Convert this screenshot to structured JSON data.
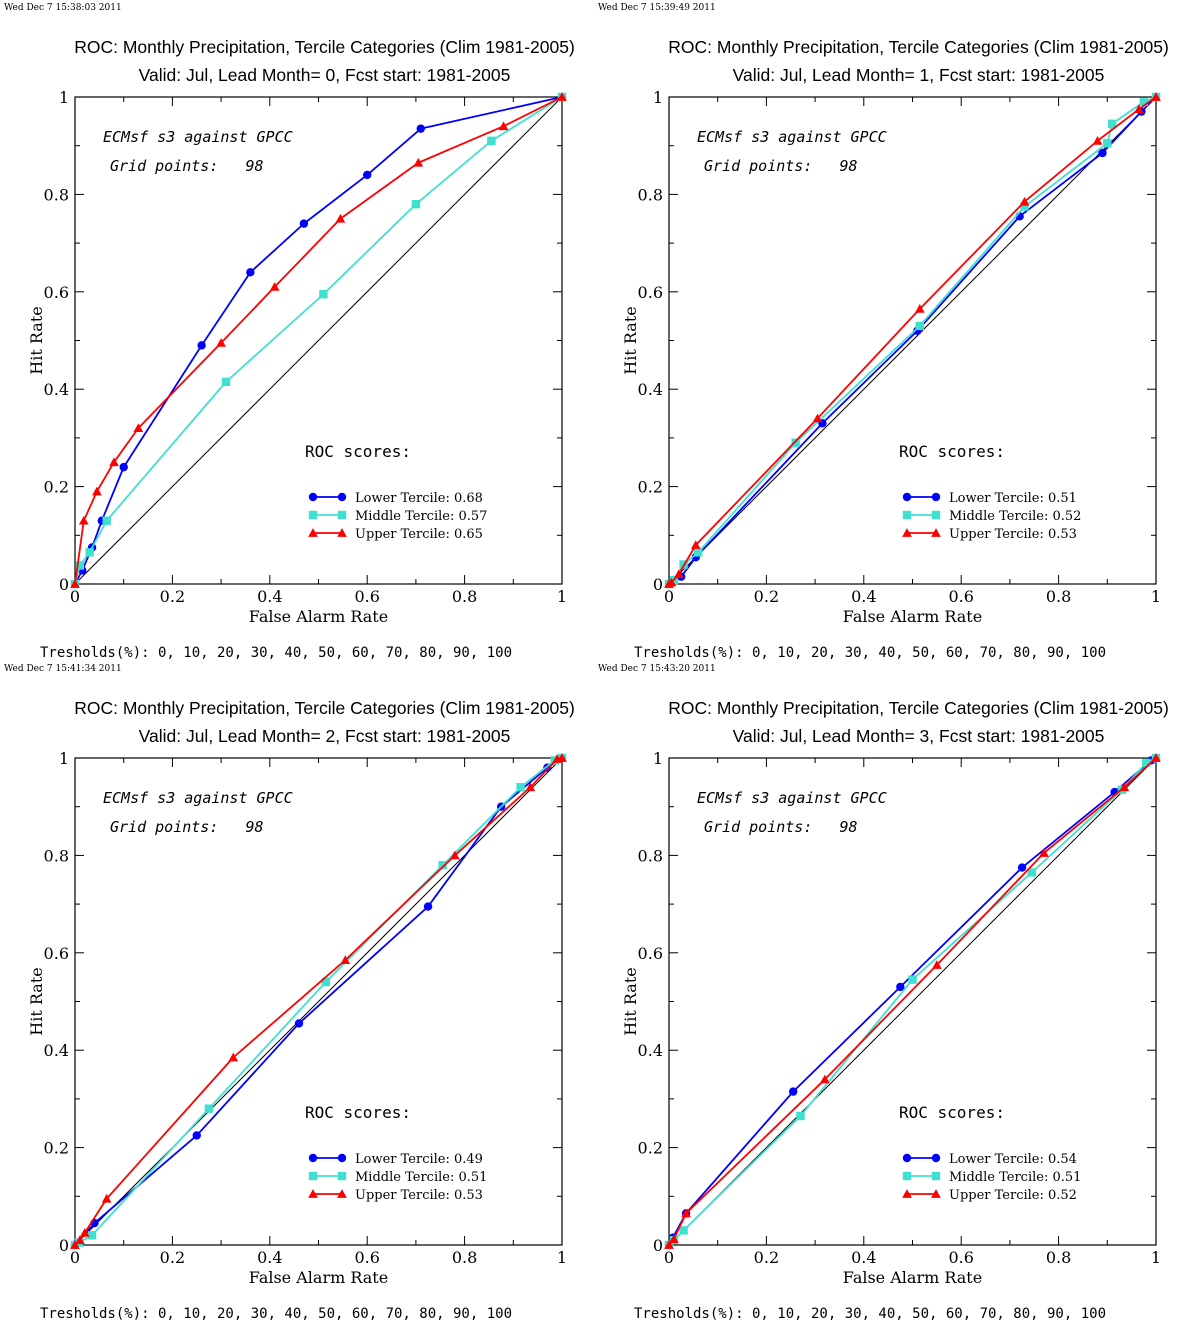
{
  "colors": {
    "lower": "#0000ff",
    "middle": "#40e0d0",
    "upper": "#ff0000",
    "axes": "#000000",
    "diagonal": "#000000"
  },
  "chart_data": [
    {
      "type": "line",
      "timestamp": "Wed Dec  7 15:38:03 2011",
      "title": "ROC: Monthly Precipitation, Tercile Categories (Clim 1981-2005)",
      "subtitle": "Valid: Jul, Lead Month= 0, Fcst start: 1981-2005",
      "xlabel": "False Alarm Rate",
      "ylabel": "Hit Rate",
      "xlim": [
        0,
        1
      ],
      "ylim": [
        0,
        1
      ],
      "xticks": [
        "0",
        "0.2",
        "0.4",
        "0.6",
        "0.8",
        "1"
      ],
      "yticks": [
        "0",
        "0.2",
        "0.4",
        "0.6",
        "0.8",
        "1"
      ],
      "annotation_1": "ECMsf s3 against GPCC",
      "annotation_2": "Grid points:   98",
      "scores_label": "ROC scores:",
      "thresholds": "Tresholds(%): 0, 10, 20, 30, 40, 50, 60, 70, 80, 90, 100",
      "series": [
        {
          "name": "Lower Tercile: 0.68",
          "marker": "circle",
          "color_key": "lower",
          "x": [
            0,
            0.015,
            0.035,
            0.055,
            0.1,
            0.26,
            0.36,
            0.47,
            0.6,
            0.71,
            1
          ],
          "y": [
            0,
            0.028,
            0.075,
            0.13,
            0.24,
            0.49,
            0.64,
            0.74,
            0.84,
            0.935,
            1
          ]
        },
        {
          "name": "Middle Tercile: 0.57",
          "marker": "square",
          "color_key": "middle",
          "x": [
            0,
            0.01,
            0.03,
            0.065,
            0.31,
            0.51,
            0.7,
            0.855,
            1
          ],
          "y": [
            0,
            0.038,
            0.065,
            0.13,
            0.415,
            0.595,
            0.78,
            0.91,
            1
          ]
        },
        {
          "name": "Upper Tercile: 0.65",
          "marker": "triangle",
          "color_key": "upper",
          "x": [
            0,
            0.018,
            0.045,
            0.08,
            0.13,
            0.3,
            0.41,
            0.545,
            0.705,
            0.88,
            1
          ],
          "y": [
            0,
            0.13,
            0.19,
            0.25,
            0.32,
            0.495,
            0.61,
            0.75,
            0.865,
            0.94,
            1
          ]
        }
      ]
    },
    {
      "type": "line",
      "timestamp": "Wed Dec  7 15:39:49 2011",
      "title": "ROC: Monthly Precipitation, Tercile Categories (Clim 1981-2005)",
      "subtitle": "Valid: Jul, Lead Month= 1, Fcst start: 1981-2005",
      "xlabel": "False Alarm Rate",
      "ylabel": "Hit Rate",
      "xlim": [
        0,
        1
      ],
      "ylim": [
        0,
        1
      ],
      "xticks": [
        "0",
        "0.2",
        "0.4",
        "0.6",
        "0.8",
        "1"
      ],
      "yticks": [
        "0",
        "0.2",
        "0.4",
        "0.6",
        "0.8",
        "1"
      ],
      "annotation_1": "ECMsf s3 against GPCC",
      "annotation_2": "Grid points:   98",
      "scores_label": "ROC scores:",
      "thresholds": "Tresholds(%): 0, 10, 20, 30, 40, 50, 60, 70, 80, 90, 100",
      "series": [
        {
          "name": "Lower Tercile: 0.51",
          "marker": "circle",
          "color_key": "lower",
          "x": [
            0,
            0.008,
            0.025,
            0.055,
            0.315,
            0.51,
            0.72,
            0.89,
            0.97,
            1
          ],
          "y": [
            0,
            0.005,
            0.015,
            0.055,
            0.33,
            0.52,
            0.755,
            0.885,
            0.97,
            1
          ]
        },
        {
          "name": "Middle Tercile: 0.52",
          "marker": "square",
          "color_key": "middle",
          "x": [
            0,
            0.01,
            0.03,
            0.06,
            0.26,
            0.515,
            0.73,
            0.9,
            0.91,
            0.975,
            1
          ],
          "y": [
            0,
            0.008,
            0.04,
            0.065,
            0.29,
            0.53,
            0.775,
            0.905,
            0.945,
            0.99,
            1
          ]
        },
        {
          "name": "Upper Tercile: 0.53",
          "marker": "triangle",
          "color_key": "upper",
          "x": [
            0,
            0.005,
            0.02,
            0.055,
            0.305,
            0.515,
            0.73,
            0.88,
            0.965,
            1
          ],
          "y": [
            0,
            0.003,
            0.02,
            0.08,
            0.34,
            0.565,
            0.785,
            0.91,
            0.975,
            1
          ]
        }
      ]
    },
    {
      "type": "line",
      "timestamp": "Wed Dec  7 15:41:34 2011",
      "title": "ROC: Monthly Precipitation, Tercile Categories (Clim 1981-2005)",
      "subtitle": "Valid: Jul, Lead Month= 2, Fcst start: 1981-2005",
      "xlabel": "False Alarm Rate",
      "ylabel": "Hit Rate",
      "xlim": [
        0,
        1
      ],
      "ylim": [
        0,
        1
      ],
      "xticks": [
        "0",
        "0.2",
        "0.4",
        "0.6",
        "0.8",
        "1"
      ],
      "yticks": [
        "0",
        "0.2",
        "0.4",
        "0.6",
        "0.8",
        "1"
      ],
      "annotation_1": "ECMsf s3 against GPCC",
      "annotation_2": "Grid points:   98",
      "scores_label": "ROC scores:",
      "thresholds": "Tresholds(%): 0, 10, 20, 30, 40, 50, 60, 70, 80, 90, 100",
      "series": [
        {
          "name": "Lower Tercile: 0.49",
          "marker": "circle",
          "color_key": "lower",
          "x": [
            0,
            0.005,
            0.04,
            0.25,
            0.46,
            0.725,
            0.875,
            0.97,
            1
          ],
          "y": [
            0,
            0.005,
            0.045,
            0.225,
            0.455,
            0.695,
            0.9,
            0.98,
            1
          ]
        },
        {
          "name": "Middle Tercile: 0.51",
          "marker": "square",
          "color_key": "middle",
          "x": [
            0,
            0.008,
            0.035,
            0.275,
            0.515,
            0.755,
            0.915,
            0.985,
            1
          ],
          "y": [
            0,
            0.005,
            0.02,
            0.28,
            0.54,
            0.78,
            0.94,
            0.995,
            1
          ]
        },
        {
          "name": "Upper Tercile: 0.53",
          "marker": "triangle",
          "color_key": "upper",
          "x": [
            0,
            0.01,
            0.02,
            0.065,
            0.325,
            0.555,
            0.78,
            0.935,
            0.99,
            1
          ],
          "y": [
            0,
            0.01,
            0.025,
            0.095,
            0.385,
            0.585,
            0.8,
            0.94,
            0.998,
            1
          ]
        }
      ]
    },
    {
      "type": "line",
      "timestamp": "Wed Dec  7 15:43:20 2011",
      "title": "ROC: Monthly Precipitation, Tercile Categories (Clim 1981-2005)",
      "subtitle": "Valid: Jul, Lead Month= 3, Fcst start: 1981-2005",
      "xlabel": "False Alarm Rate",
      "ylabel": "Hit Rate",
      "xlim": [
        0,
        1
      ],
      "ylim": [
        0,
        1
      ],
      "xticks": [
        "0",
        "0.2",
        "0.4",
        "0.6",
        "0.8",
        "1"
      ],
      "yticks": [
        "0",
        "0.2",
        "0.4",
        "0.6",
        "0.8",
        "1"
      ],
      "annotation_1": "ECMsf s3 against GPCC",
      "annotation_2": "Grid points:   98",
      "scores_label": "ROC scores:",
      "thresholds": "Tresholds(%): 0, 10, 20, 30, 40, 50, 60, 70, 80, 90, 100",
      "series": [
        {
          "name": "Lower Tercile: 0.54",
          "marker": "circle",
          "color_key": "lower",
          "x": [
            0,
            0.008,
            0.035,
            0.255,
            0.475,
            0.725,
            0.915,
            0.99,
            1
          ],
          "y": [
            0,
            0.015,
            0.065,
            0.315,
            0.53,
            0.775,
            0.93,
            0.995,
            1
          ]
        },
        {
          "name": "Middle Tercile: 0.51",
          "marker": "square",
          "color_key": "middle",
          "x": [
            0,
            0.01,
            0.03,
            0.27,
            0.5,
            0.745,
            0.93,
            0.98,
            1
          ],
          "y": [
            0,
            0.01,
            0.03,
            0.265,
            0.545,
            0.765,
            0.935,
            0.99,
            1
          ]
        },
        {
          "name": "Upper Tercile: 0.52",
          "marker": "triangle",
          "color_key": "upper",
          "x": [
            0,
            0.01,
            0.035,
            0.32,
            0.55,
            0.77,
            0.935,
            1
          ],
          "y": [
            0,
            0.012,
            0.065,
            0.34,
            0.575,
            0.805,
            0.94,
            1
          ]
        }
      ]
    }
  ]
}
